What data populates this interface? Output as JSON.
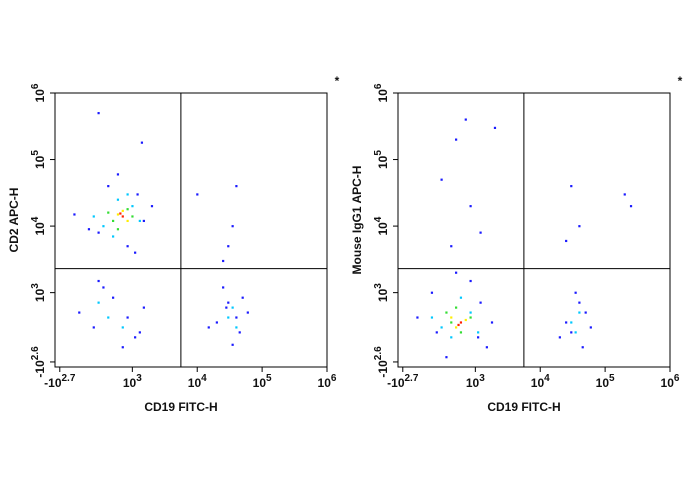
{
  "chart_data": [
    {
      "type": "scatter",
      "xlabel": "CD19 FITC-H",
      "ylabel": "CD2 APC-H",
      "annotation": "*",
      "scale": "biexponential",
      "xlim": [
        -600,
        1000000
      ],
      "ylim": [
        -500,
        1000000
      ],
      "xticks": [
        {
          "value": -501,
          "label": "-10^2.7"
        },
        {
          "value": 1000,
          "label": "10^3"
        },
        {
          "value": 10000,
          "label": "10^4"
        },
        {
          "value": 100000,
          "label": "10^5"
        },
        {
          "value": 1000000,
          "label": "10^6"
        }
      ],
      "yticks": [
        {
          "value": -398,
          "label": "-10^2.6"
        },
        {
          "value": 1000,
          "label": "10^3"
        },
        {
          "value": 10000,
          "label": "10^4"
        },
        {
          "value": 100000,
          "label": "10^5"
        },
        {
          "value": 1000000,
          "label": "10^6"
        }
      ],
      "gates": {
        "x": 5600,
        "y": 2300
      },
      "series": [
        {
          "color": "#1a1aff",
          "x": [
            300,
            1200,
            500,
            1500,
            -200,
            900,
            2000,
            100,
            700,
            1100,
            200,
            600,
            900,
            1300,
            400,
            -100,
            800,
            1500,
            300,
            1100,
            20000,
            30000,
            45000,
            25000,
            60000,
            35000,
            15000,
            50000,
            40000,
            28000,
            10000,
            30000,
            40000,
            35000,
            25000,
            300,
            1400
          ],
          "y": [
            8000,
            30000,
            40000,
            12000,
            15000,
            5000,
            20000,
            9000,
            60000,
            4000,
            300,
            900,
            500,
            200,
            1200,
            600,
            -100,
            700,
            1500,
            100,
            400,
            800,
            200,
            1200,
            600,
            -50,
            300,
            900,
            500,
            700,
            30000,
            5000,
            40000,
            10000,
            3000,
            500000,
            180000
          ]
        },
        {
          "color": "#00c8ff",
          "x": [
            400,
            1000,
            700,
            1300,
            200,
            600,
            900,
            500,
            800,
            300,
            30000,
            40000,
            35000
          ],
          "y": [
            10000,
            20000,
            25000,
            12000,
            14000,
            7000,
            30000,
            500,
            300,
            800,
            500,
            300,
            700
          ]
        },
        {
          "color": "#33dd33",
          "x": [
            600,
            900,
            700,
            1000,
            500
          ],
          "y": [
            12000,
            18000,
            9000,
            14000,
            16000
          ]
        },
        {
          "color": "#ffee00",
          "x": [
            700,
            900,
            800
          ],
          "y": [
            15000,
            12000,
            17000
          ]
        },
        {
          "color": "#ff2000",
          "x": [
            800,
            750
          ],
          "y": [
            14000,
            15500
          ]
        }
      ]
    },
    {
      "type": "scatter",
      "xlabel": "CD19 FITC-H",
      "ylabel": "Mouse IgG1 APC-H",
      "annotation": "*",
      "scale": "biexponential",
      "xlim": [
        -600,
        1000000
      ],
      "ylim": [
        -500,
        1000000
      ],
      "xticks": [
        {
          "value": -501,
          "label": "-10^2.7"
        },
        {
          "value": 1000,
          "label": "10^3"
        },
        {
          "value": 10000,
          "label": "10^4"
        },
        {
          "value": 100000,
          "label": "10^5"
        },
        {
          "value": 1000000,
          "label": "10^6"
        }
      ],
      "yticks": [
        {
          "value": -398,
          "label": "-10^2.6"
        },
        {
          "value": 1000,
          "label": "10^3"
        },
        {
          "value": 10000,
          "label": "10^4"
        },
        {
          "value": 100000,
          "label": "10^5"
        },
        {
          "value": 1000000,
          "label": "10^6"
        }
      ],
      "gates": {
        "x": 5600,
        "y": 2300
      },
      "series": [
        {
          "color": "#1a1aff",
          "x": [
            200,
            1200,
            -200,
            1500,
            900,
            100,
            1800,
            400,
            1100,
            600,
            25000,
            40000,
            30000,
            50000,
            20000,
            35000,
            60000,
            45000,
            300,
            600,
            900,
            1200,
            2000,
            500,
            30000,
            25000,
            200000,
            250000,
            40000,
            800
          ],
          "y": [
            200,
            800,
            500,
            -100,
            1500,
            1000,
            400,
            -300,
            100,
            2000,
            400,
            800,
            200,
            600,
            100,
            1000,
            300,
            -100,
            50000,
            200000,
            20000,
            8000,
            300000,
            5000,
            40000,
            6000,
            30000,
            20000,
            10000,
            400000
          ]
        },
        {
          "color": "#00c8ff",
          "x": [
            300,
            900,
            500,
            1100,
            700,
            100,
            30000,
            40000,
            35000
          ],
          "y": [
            300,
            600,
            100,
            200,
            900,
            500,
            400,
            600,
            200
          ]
        },
        {
          "color": "#33dd33",
          "x": [
            500,
            700,
            900,
            400,
            600
          ],
          "y": [
            400,
            200,
            500,
            600,
            700
          ]
        },
        {
          "color": "#ffee00",
          "x": [
            600,
            800,
            500
          ],
          "y": [
            300,
            450,
            500
          ]
        },
        {
          "color": "#ff2000",
          "x": [
            650,
            700
          ],
          "y": [
            350,
            400
          ]
        }
      ]
    }
  ]
}
